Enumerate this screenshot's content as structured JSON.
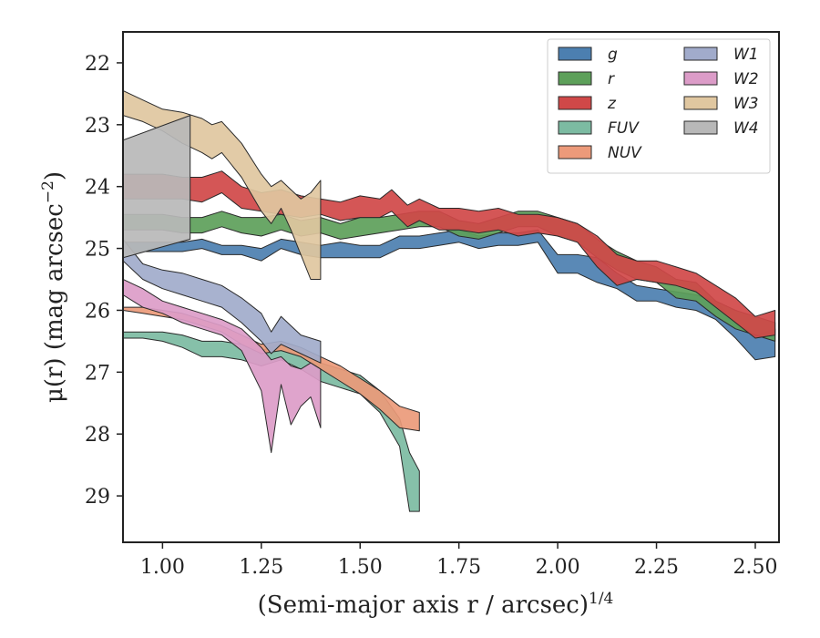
{
  "chart_data": {
    "type": "area",
    "xlabel": "(Semi-major axis r / arcsec)",
    "xlabel_super": "1/4",
    "ylabel": "μ(r) (mag arcsec",
    "ylabel_super": "−2",
    "ylabel_tail": ")",
    "xlim": [
      0.9,
      2.56
    ],
    "ylim": [
      29.75,
      21.5
    ],
    "y_inverted": true,
    "x_ticks": [
      1.0,
      1.25,
      1.5,
      1.75,
      2.0,
      2.25,
      2.5
    ],
    "x_tick_labels": [
      "1.00",
      "1.25",
      "1.50",
      "1.75",
      "2.00",
      "2.25",
      "2.50"
    ],
    "y_ticks": [
      22,
      23,
      24,
      25,
      26,
      27,
      28,
      29
    ],
    "y_tick_labels": [
      "22",
      "23",
      "24",
      "25",
      "26",
      "27",
      "28",
      "29"
    ],
    "legend_position": "top-right",
    "legend_columns": 2,
    "series": [
      {
        "name": "g",
        "color": "#4c7fb0",
        "x": [
          0.9,
          0.95,
          1.0,
          1.05,
          1.1,
          1.15,
          1.2,
          1.25,
          1.3,
          1.35,
          1.4,
          1.45,
          1.5,
          1.55,
          1.6,
          1.65,
          1.7,
          1.75,
          1.8,
          1.85,
          1.9,
          1.95,
          2.0,
          2.05,
          2.1,
          2.15,
          2.2,
          2.25,
          2.3,
          2.35,
          2.4,
          2.45,
          2.5,
          2.55
        ],
        "y_upper": [
          24.9,
          24.9,
          24.9,
          24.9,
          24.85,
          24.95,
          24.95,
          25.0,
          24.85,
          24.9,
          24.95,
          24.9,
          24.95,
          24.95,
          24.8,
          24.8,
          24.75,
          24.7,
          24.8,
          24.75,
          24.75,
          24.7,
          25.1,
          25.1,
          25.15,
          25.4,
          25.6,
          25.65,
          25.7,
          25.75,
          25.85,
          26.2,
          26.4,
          26.3
        ],
        "y_lower": [
          25.1,
          25.05,
          25.05,
          25.05,
          25.0,
          25.1,
          25.1,
          25.2,
          25.0,
          25.1,
          25.15,
          25.15,
          25.15,
          25.15,
          25.0,
          25.0,
          24.95,
          24.9,
          25.0,
          24.95,
          24.95,
          24.9,
          25.4,
          25.4,
          25.55,
          25.65,
          25.85,
          25.85,
          25.95,
          26.0,
          26.15,
          26.45,
          26.8,
          26.75
        ]
      },
      {
        "name": "r",
        "color": "#5da05a",
        "x": [
          0.9,
          0.95,
          1.0,
          1.05,
          1.1,
          1.15,
          1.2,
          1.25,
          1.3,
          1.35,
          1.4,
          1.45,
          1.5,
          1.55,
          1.6,
          1.65,
          1.7,
          1.75,
          1.8,
          1.85,
          1.9,
          1.95,
          2.0,
          2.05,
          2.1,
          2.15,
          2.2,
          2.25,
          2.3,
          2.35,
          2.4,
          2.45,
          2.5,
          2.55
        ],
        "y_upper": [
          24.45,
          24.45,
          24.45,
          24.5,
          24.5,
          24.4,
          24.5,
          24.5,
          24.45,
          24.55,
          24.5,
          24.6,
          24.5,
          24.5,
          24.45,
          24.4,
          24.4,
          24.55,
          24.6,
          24.5,
          24.4,
          24.4,
          24.5,
          24.6,
          24.85,
          25.05,
          25.2,
          25.3,
          25.5,
          25.55,
          25.85,
          26.0,
          26.1,
          26.2
        ],
        "y_lower": [
          24.7,
          24.7,
          24.7,
          24.75,
          24.75,
          24.65,
          24.75,
          24.8,
          24.7,
          24.8,
          24.75,
          24.85,
          24.8,
          24.75,
          24.7,
          24.65,
          24.65,
          24.8,
          24.85,
          24.75,
          24.65,
          24.65,
          24.8,
          24.9,
          25.15,
          25.35,
          25.5,
          25.55,
          25.8,
          25.85,
          26.1,
          26.3,
          26.4,
          26.5
        ]
      },
      {
        "name": "z",
        "color": "#d04848",
        "x": [
          0.9,
          0.95,
          1.0,
          1.05,
          1.1,
          1.15,
          1.2,
          1.25,
          1.3,
          1.35,
          1.4,
          1.45,
          1.5,
          1.55,
          1.58,
          1.62,
          1.65,
          1.7,
          1.75,
          1.8,
          1.85,
          1.9,
          1.95,
          2.0,
          2.05,
          2.1,
          2.15,
          2.2,
          2.25,
          2.3,
          2.35,
          2.4,
          2.45,
          2.5,
          2.55
        ],
        "y_upper": [
          23.8,
          23.8,
          23.8,
          23.85,
          23.85,
          23.75,
          24.0,
          24.1,
          24.05,
          24.15,
          24.2,
          24.25,
          24.15,
          24.2,
          24.05,
          24.3,
          24.2,
          24.35,
          24.35,
          24.4,
          24.35,
          24.45,
          24.45,
          24.5,
          24.6,
          24.8,
          25.1,
          25.2,
          25.2,
          25.3,
          25.4,
          25.6,
          25.8,
          26.1,
          26.0
        ],
        "y_lower": [
          24.2,
          24.2,
          24.2,
          24.2,
          24.25,
          24.1,
          24.35,
          24.4,
          24.45,
          24.5,
          24.45,
          24.55,
          24.5,
          24.5,
          24.4,
          24.65,
          24.55,
          24.7,
          24.7,
          24.75,
          24.7,
          24.8,
          24.75,
          24.8,
          24.9,
          25.3,
          25.6,
          25.5,
          25.55,
          25.6,
          25.7,
          25.95,
          26.2,
          26.45,
          26.4
        ]
      },
      {
        "name": "FUV",
        "color": "#7cbba2",
        "x": [
          0.9,
          0.95,
          1.0,
          1.05,
          1.1,
          1.15,
          1.2,
          1.25,
          1.3,
          1.35,
          1.4,
          1.45,
          1.5,
          1.55,
          1.6,
          1.625,
          1.65
        ],
        "y_upper": [
          26.35,
          26.35,
          26.35,
          26.4,
          26.5,
          26.5,
          26.55,
          26.65,
          26.55,
          26.7,
          26.85,
          26.95,
          27.05,
          27.3,
          27.75,
          28.3,
          28.6
        ],
        "y_lower": [
          26.45,
          26.45,
          26.5,
          26.6,
          26.75,
          26.75,
          26.8,
          26.9,
          26.8,
          26.95,
          27.15,
          27.25,
          27.35,
          27.65,
          28.2,
          29.25,
          29.25
        ]
      },
      {
        "name": "NUV",
        "color": "#ec9a7a",
        "x": [
          0.9,
          0.95,
          1.0,
          1.05,
          1.1,
          1.15,
          1.2,
          1.25,
          1.3,
          1.35,
          1.4,
          1.45,
          1.5,
          1.55,
          1.6,
          1.65
        ],
        "y_upper": [
          25.95,
          25.95,
          26.0,
          26.05,
          26.15,
          26.25,
          26.4,
          26.55,
          26.5,
          26.6,
          26.75,
          26.9,
          27.1,
          27.3,
          27.55,
          27.65
        ],
        "y_lower": [
          26.0,
          26.05,
          26.1,
          26.15,
          26.25,
          26.35,
          26.55,
          26.7,
          26.65,
          26.75,
          26.95,
          27.15,
          27.35,
          27.6,
          27.9,
          27.95
        ]
      },
      {
        "name": "W1",
        "color": "#a1abcb",
        "x": [
          0.9,
          0.95,
          1.0,
          1.05,
          1.1,
          1.15,
          1.2,
          1.25,
          1.275,
          1.3,
          1.35,
          1.4
        ],
        "y_upper": [
          24.85,
          25.25,
          25.35,
          25.4,
          25.5,
          25.6,
          25.8,
          26.05,
          26.35,
          26.1,
          26.4,
          26.5
        ],
        "y_lower": [
          25.2,
          25.5,
          25.65,
          25.75,
          25.85,
          25.95,
          26.2,
          26.5,
          26.7,
          26.55,
          26.7,
          26.85
        ]
      },
      {
        "name": "W2",
        "color": "#dc9cc8",
        "x": [
          0.9,
          0.95,
          1.0,
          1.05,
          1.1,
          1.15,
          1.2,
          1.25,
          1.275,
          1.3,
          1.325,
          1.35,
          1.375,
          1.4
        ],
        "y_upper": [
          25.5,
          25.65,
          25.85,
          25.95,
          26.05,
          26.15,
          26.3,
          26.6,
          26.8,
          26.75,
          26.9,
          26.95,
          26.85,
          26.95
        ],
        "y_lower": [
          25.75,
          25.95,
          26.05,
          26.2,
          26.3,
          26.4,
          26.65,
          27.3,
          28.3,
          27.2,
          27.85,
          27.55,
          27.4,
          27.9
        ]
      },
      {
        "name": "W3",
        "color": "#e0c7a0",
        "x": [
          0.9,
          0.95,
          1.0,
          1.05,
          1.1,
          1.125,
          1.15,
          1.2,
          1.25,
          1.275,
          1.3,
          1.325,
          1.35,
          1.375,
          1.4
        ],
        "y_upper": [
          22.45,
          22.6,
          22.75,
          22.8,
          22.9,
          23.0,
          22.95,
          23.3,
          23.8,
          24.0,
          23.9,
          24.05,
          24.2,
          24.1,
          23.9
        ],
        "y_lower": [
          22.85,
          22.95,
          23.1,
          23.3,
          23.45,
          23.55,
          23.45,
          23.85,
          24.4,
          24.6,
          24.35,
          24.7,
          25.1,
          25.5,
          25.5
        ]
      },
      {
        "name": "W4",
        "color": "#b8b8b8",
        "x": [
          0.9,
          1.07
        ],
        "y_upper": [
          23.25,
          22.85
        ],
        "y_lower": [
          25.15,
          24.85
        ]
      }
    ]
  }
}
